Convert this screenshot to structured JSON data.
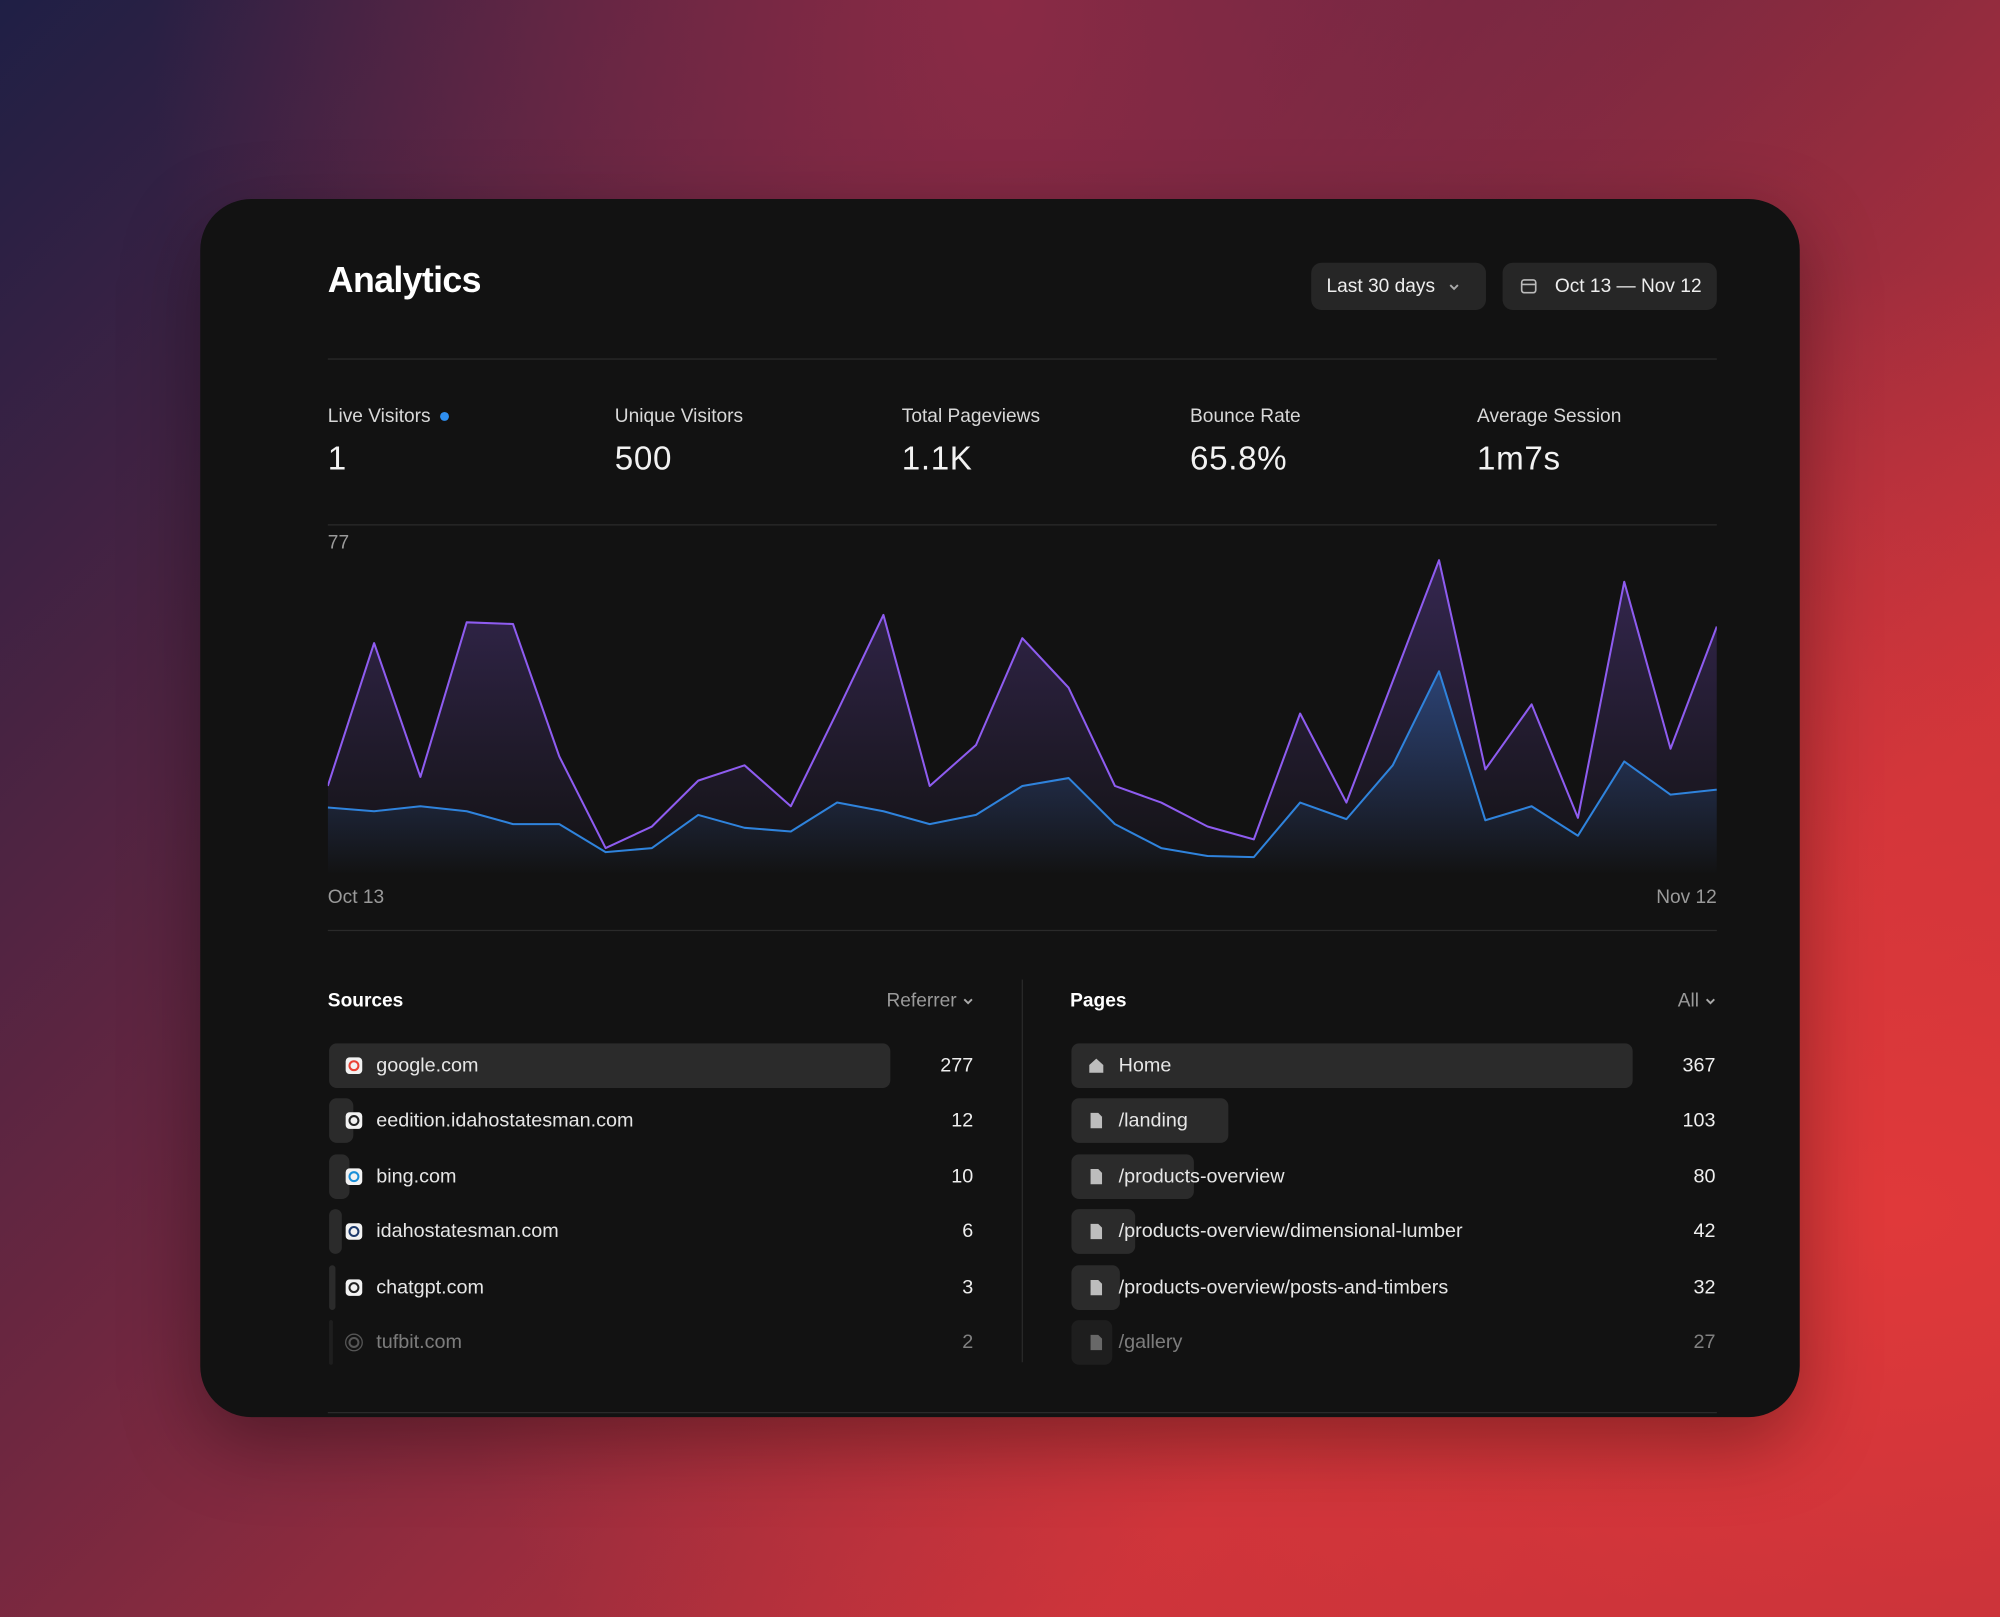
{
  "header": {
    "title": "Analytics",
    "range": "Last 30 days",
    "dates": "Oct 13 — Nov 12"
  },
  "stats": [
    {
      "label": "Live Visitors",
      "value": "1"
    },
    {
      "label": "Unique Visitors",
      "value": "500"
    },
    {
      "label": "Total Pageviews",
      "value": "1.1K"
    },
    {
      "label": "Bounce Rate",
      "value": "65.8%"
    },
    {
      "label": "Average Session",
      "value": "1m7s"
    }
  ],
  "chart_data": {
    "type": "line",
    "categories": [
      "Oct 13",
      null,
      null,
      null,
      null,
      null,
      null,
      null,
      null,
      null,
      null,
      null,
      null,
      null,
      null,
      null,
      null,
      null,
      null,
      null,
      null,
      null,
      null,
      null,
      null,
      null,
      null,
      null,
      null,
      null,
      "Nov 12"
    ],
    "ylim": [
      0,
      77
    ],
    "yticks": [
      77
    ],
    "series": [
      {
        "color": "#8e5cf0",
        "values": [
          21.5,
          56,
          23.7,
          61,
          60.6,
          28.6,
          6.5,
          11.7,
          22.8,
          26.5,
          16.6,
          39.4,
          62.8,
          21.5,
          31.4,
          57.2,
          45.2,
          21.5,
          17.5,
          11.7,
          8.6,
          39,
          17.5,
          46.8,
          76,
          25.5,
          41.2,
          13.8,
          70.8,
          30.5,
          60
        ]
      },
      {
        "color": "#2f83dc",
        "values": [
          16.3,
          15.4,
          16.6,
          15.4,
          12.3,
          12.3,
          5.5,
          6.5,
          14.5,
          11.4,
          10.5,
          17.5,
          15.4,
          12.3,
          14.5,
          21.5,
          23.4,
          12.3,
          6.5,
          4.6,
          4.3,
          17.5,
          13.5,
          26.5,
          49.2,
          13.2,
          16.6,
          9.5,
          27.4,
          19.4,
          20.6
        ]
      }
    ]
  },
  "sources": {
    "title": "Sources",
    "filter": "Referrer",
    "rows": [
      {
        "name": "google.com",
        "count": 277
      },
      {
        "name": "eedition.idahostatesman.com",
        "count": 12
      },
      {
        "name": "bing.com",
        "count": 10
      },
      {
        "name": "idahostatesman.com",
        "count": 6
      },
      {
        "name": "chatgpt.com",
        "count": 3
      },
      {
        "name": "tufbit.com",
        "count": 2
      }
    ]
  },
  "pages": {
    "title": "Pages",
    "filter": "All",
    "rows": [
      {
        "name": "Home",
        "count": 367
      },
      {
        "name": "/landing",
        "count": 103
      },
      {
        "name": "/products-overview",
        "count": 80
      },
      {
        "name": "/products-overview/dimensional-lumber",
        "count": 42
      },
      {
        "name": "/products-overview/posts-and-timbers",
        "count": 32
      },
      {
        "name": "/gallery",
        "count": 27
      }
    ]
  }
}
